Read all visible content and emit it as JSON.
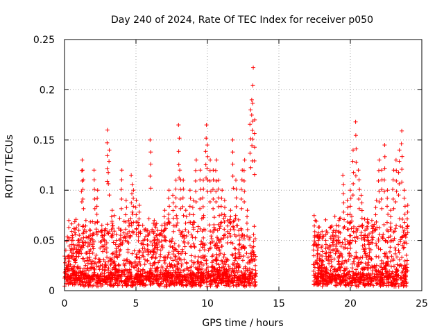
{
  "chart_data": {
    "type": "scatter",
    "title": "Day 240 of 2024, Rate Of TEC Index for receiver p050",
    "xlabel": "GPS time / hours",
    "ylabel": "ROTI / TECUs",
    "xlim": [
      0,
      25
    ],
    "ylim": [
      0,
      0.25
    ],
    "xticks": [
      0,
      5,
      10,
      15,
      20,
      25
    ],
    "yticks": [
      0,
      0.05,
      0.1,
      0.15,
      0.2,
      0.25
    ],
    "xtick_labels": [
      "0",
      "5",
      "10",
      "15",
      "20",
      "25"
    ],
    "ytick_labels": [
      "0",
      "0.05",
      "0.1",
      "0.15",
      "0.2",
      "0.25"
    ],
    "grid": true,
    "marker": "plus",
    "marker_color": "#ff0000",
    "data_coverage_hours": [
      [
        0.0,
        13.4
      ],
      [
        17.4,
        24.0
      ]
    ],
    "series": [
      {
        "name": "ROTI",
        "x": [
          0.1,
          0.3,
          0.5,
          0.8,
          1.0,
          1.2,
          1.3,
          1.5,
          1.8,
          2.0,
          2.1,
          2.3,
          2.6,
          2.8,
          3.0,
          3.1,
          3.3,
          3.6,
          3.9,
          4.0,
          4.3,
          4.5,
          4.7,
          4.8,
          5.0,
          5.2,
          5.5,
          5.8,
          6.0,
          6.3,
          6.5,
          6.8,
          7.0,
          7.3,
          7.6,
          7.8,
          8.0,
          8.1,
          8.3,
          8.5,
          8.8,
          9.0,
          9.2,
          9.5,
          9.7,
          9.9,
          10.0,
          10.2,
          10.4,
          10.6,
          10.8,
          11.0,
          11.2,
          11.4,
          11.6,
          11.8,
          12.0,
          12.2,
          12.4,
          12.6,
          12.8,
          13.0,
          13.1,
          13.2,
          13.3,
          17.5,
          17.7,
          18.0,
          18.3,
          18.5,
          18.8,
          19.0,
          19.2,
          19.5,
          19.8,
          20.0,
          20.2,
          20.4,
          20.6,
          20.8,
          21.0,
          21.3,
          21.5,
          21.8,
          22.0,
          22.2,
          22.4,
          22.6,
          22.8,
          23.0,
          23.2,
          23.4,
          23.6,
          23.8,
          24.0
        ],
        "y": [
          0.025,
          0.035,
          0.05,
          0.045,
          0.06,
          0.13,
          0.12,
          0.07,
          0.06,
          0.055,
          0.12,
          0.1,
          0.065,
          0.06,
          0.16,
          0.14,
          0.08,
          0.05,
          0.06,
          0.12,
          0.09,
          0.07,
          0.115,
          0.1,
          0.09,
          0.085,
          0.05,
          0.06,
          0.15,
          0.07,
          0.06,
          0.065,
          0.08,
          0.1,
          0.095,
          0.11,
          0.165,
          0.12,
          0.11,
          0.08,
          0.1,
          0.09,
          0.13,
          0.12,
          0.11,
          0.165,
          0.145,
          0.13,
          0.12,
          0.13,
          0.11,
          0.1,
          0.09,
          0.07,
          0.08,
          0.15,
          0.11,
          0.06,
          0.12,
          0.13,
          0.08,
          0.18,
          0.19,
          0.222,
          0.17,
          0.07,
          0.04,
          0.03,
          0.05,
          0.045,
          0.06,
          0.065,
          0.07,
          0.115,
          0.09,
          0.1,
          0.14,
          0.168,
          0.12,
          0.095,
          0.06,
          0.05,
          0.07,
          0.09,
          0.13,
          0.12,
          0.145,
          0.1,
          0.08,
          0.12,
          0.13,
          0.14,
          0.159,
          0.1,
          0.085
        ]
      }
    ]
  }
}
